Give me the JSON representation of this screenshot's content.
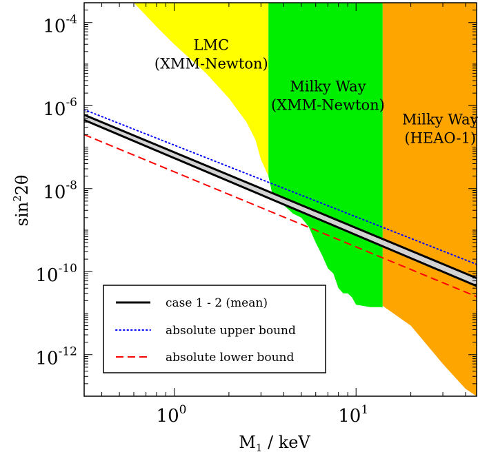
{
  "chart_data": {
    "type": "line",
    "title": "",
    "xlabel": "M",
    "xlabel_sub": "1",
    "xlabel_unit": " / keV",
    "ylabel": "sin",
    "ylabel_sup": "2",
    "ylabel_tail": "2θ",
    "x_scale": "log",
    "y_scale": "log",
    "xlim": [
      0.32,
      46
    ],
    "ylim": [
      1e-13,
      0.0003
    ],
    "x_ticks": [
      {
        "value": 1,
        "base": "10",
        "exp": "0"
      },
      {
        "value": 10,
        "base": "10",
        "exp": "1"
      }
    ],
    "y_ticks": [
      {
        "value": 0.0001,
        "base": "10",
        "exp": "-4"
      },
      {
        "value": 1e-06,
        "base": "10",
        "exp": "-6"
      },
      {
        "value": 1e-08,
        "base": "10",
        "exp": "-8"
      },
      {
        "value": 1e-10,
        "base": "10",
        "exp": "-10"
      },
      {
        "value": 1e-12,
        "base": "10",
        "exp": "-12"
      }
    ],
    "grid": false,
    "regions": [
      {
        "name": "LMC (XMM-Newton)",
        "label_lines": [
          "LMC",
          "(XMM-Newton)"
        ],
        "color": "#ffff00",
        "label_at": [
          1.6,
          2.2e-05
        ],
        "boundary": [
          [
            0.6,
            0.0003
          ],
          [
            0.8,
            8e-05
          ],
          [
            1.0,
            3e-05
          ],
          [
            1.5,
            6e-06
          ],
          [
            2.0,
            1.5e-06
          ],
          [
            2.5,
            4e-07
          ],
          [
            2.8,
            1.5e-07
          ],
          [
            3.0,
            5e-08
          ],
          [
            3.3,
            2e-08
          ],
          [
            3.3,
            0.0003
          ]
        ]
      },
      {
        "name": "Milky Way (XMM-Newton)",
        "label_lines": [
          "Milky Way",
          "(XMM-Newton)"
        ],
        "color": "#00ee00",
        "label_at": [
          7.0,
          2.2e-06
        ],
        "boundary": [
          [
            3.3,
            0.0003
          ],
          [
            3.3,
            2e-08
          ],
          [
            3.5,
            6e-09
          ],
          [
            4.0,
            4e-09
          ],
          [
            4.5,
            2.5e-09
          ],
          [
            5.0,
            2e-09
          ],
          [
            5.5,
            1.2e-09
          ],
          [
            6.0,
            5e-10
          ],
          [
            6.5,
            2.5e-10
          ],
          [
            7.0,
            1.2e-10
          ],
          [
            7.5,
            9e-11
          ],
          [
            8.0,
            4e-11
          ],
          [
            8.5,
            3e-11
          ],
          [
            9.0,
            3e-11
          ],
          [
            9.5,
            2.4e-11
          ],
          [
            10.0,
            1.6e-11
          ],
          [
            12.0,
            1.4e-11
          ],
          [
            14.0,
            1.4e-11
          ],
          [
            14.0,
            0.0003
          ]
        ]
      },
      {
        "name": "Milky Way (HEAO-1)",
        "label_lines": [
          "Milky Way",
          "(HEAO-1)"
        ],
        "color": "#ffa500",
        "label_at": [
          29,
          3.5e-07
        ],
        "boundary": [
          [
            14.0,
            0.0003
          ],
          [
            14.0,
            1.5e-11
          ],
          [
            20.0,
            5e-12
          ],
          [
            30.0,
            6e-13
          ],
          [
            40.0,
            1.5e-13
          ],
          [
            46.0,
            1e-13
          ],
          [
            46.0,
            0.0003
          ]
        ]
      }
    ],
    "series": [
      {
        "name": "case 1 - 2 (mean)",
        "style": "solid-band",
        "color": "#000000",
        "band_fill": "#d3d3d3",
        "x": [
          0.32,
          46
        ],
        "upper": [
          6e-07,
          7e-11
        ],
        "lower": [
          4.5e-07,
          4.5e-11
        ]
      },
      {
        "name": "absolute upper bound",
        "style": "dotted",
        "color": "#0000ff",
        "x": [
          0.32,
          46
        ],
        "values": [
          8e-07,
          1.5e-10
        ]
      },
      {
        "name": "absolute lower bound",
        "style": "dashed",
        "color": "#ff0000",
        "x": [
          0.32,
          46
        ],
        "values": [
          2e-07,
          2.5e-11
        ]
      }
    ],
    "legend_position": "bottom-left"
  }
}
